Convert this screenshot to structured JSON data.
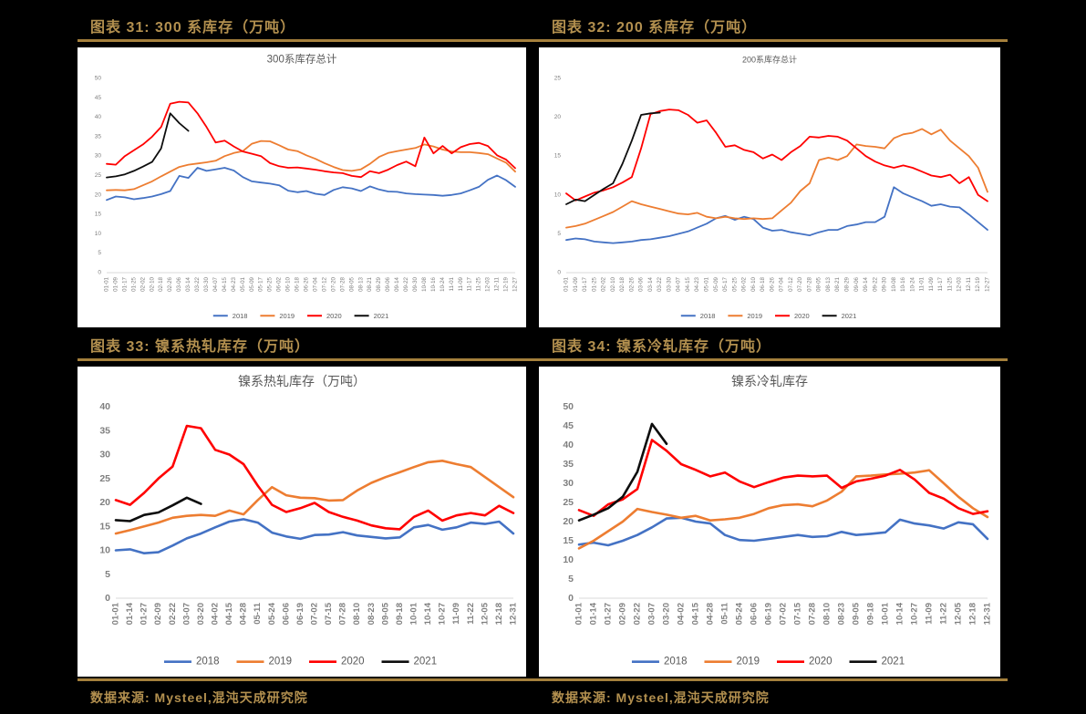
{
  "page": {
    "background": "#000000",
    "gold_text": "#B3904F",
    "gold_rule": "#A5803C",
    "card_background": "#FFFFFF",
    "axis_text_color": "#7F7F7F",
    "title_text_color": "#595959",
    "baseline_color": "#D9D9D9"
  },
  "figures": [
    {
      "caption": "图表 31: 300 系库存（万吨）"
    },
    {
      "caption": "图表 32: 200 系库存（万吨）"
    },
    {
      "caption": "图表 33: 镍系热轧库存（万吨）"
    },
    {
      "caption": "图表 34: 镍系冷轧库存（万吨）"
    }
  ],
  "sources": {
    "left": "数据来源: Mysteel,混沌天成研究院",
    "right": "数据来源: Mysteel,混沌天成研究院"
  },
  "chart_data": [
    {
      "type": "line",
      "title": "300系库存总计",
      "xlabel": "",
      "ylabel": "",
      "ylim": [
        0,
        50
      ],
      "ystep": 5,
      "grid": false,
      "legend_position": "bottom",
      "categories": [
        "01-01",
        "01-09",
        "01-17",
        "01-25",
        "02-02",
        "02-10",
        "02-18",
        "02-26",
        "03-06",
        "03-14",
        "03-22",
        "03-30",
        "04-07",
        "04-15",
        "04-23",
        "05-01",
        "05-09",
        "05-17",
        "05-25",
        "06-02",
        "06-10",
        "06-18",
        "06-26",
        "07-04",
        "07-12",
        "07-20",
        "07-28",
        "08-05",
        "08-13",
        "08-21",
        "08-29",
        "09-06",
        "09-14",
        "09-22",
        "09-30",
        "10-08",
        "10-16",
        "10-24",
        "11-01",
        "11-09",
        "11-17",
        "11-25",
        "12-03",
        "12-11",
        "12-19",
        "12-27"
      ],
      "series": [
        {
          "name": "2018",
          "color": "#4472C4",
          "values": [
            18.7,
            19.6,
            19.4,
            18.9,
            19.2,
            19.6,
            20.2,
            21.0,
            24.9,
            24.4,
            27.0,
            26.2,
            26.6,
            27.0,
            26.3,
            24.6,
            23.5,
            23.2,
            22.9,
            22.5,
            21.1,
            20.7,
            21.0,
            20.3,
            20.0,
            21.3,
            22.0,
            21.7,
            21.0,
            22.2,
            21.4,
            20.9,
            20.8,
            20.4,
            20.2,
            20.1,
            20.0,
            19.8,
            20.0,
            20.4,
            21.2,
            22.1,
            23.9,
            25.0,
            23.8,
            22.1
          ]
        },
        {
          "name": "2019",
          "color": "#ED7D31",
          "values": [
            21.2,
            21.3,
            21.2,
            21.5,
            22.5,
            23.5,
            24.8,
            26.0,
            27.2,
            27.8,
            28.1,
            28.4,
            28.8,
            30.0,
            30.8,
            31.3,
            33.2,
            33.9,
            33.8,
            32.8,
            31.7,
            31.3,
            30.2,
            29.3,
            28.2,
            27.2,
            26.4,
            26.2,
            26.6,
            28.0,
            29.8,
            30.8,
            31.3,
            31.7,
            32.1,
            33.0,
            32.5,
            31.7,
            31.2,
            31.0,
            31.0,
            30.8,
            30.5,
            29.4,
            28.3,
            26.0
          ]
        },
        {
          "name": "2020",
          "color": "#FF0000",
          "values": [
            28.0,
            27.8,
            30.0,
            31.5,
            33.0,
            35.0,
            37.5,
            43.5,
            44.0,
            43.8,
            41.0,
            37.5,
            33.5,
            34.0,
            32.5,
            31.2,
            30.6,
            30.0,
            28.2,
            27.4,
            27.0,
            27.1,
            26.8,
            26.5,
            26.1,
            25.8,
            25.6,
            24.9,
            24.6,
            26.1,
            25.6,
            26.5,
            27.7,
            28.6,
            27.4,
            34.8,
            30.7,
            32.6,
            30.7,
            32.3,
            33.1,
            33.4,
            32.6,
            30.2,
            29.1,
            26.9
          ]
        },
        {
          "name": "2021",
          "color": "#0D0D0D",
          "values": [
            24.5,
            24.8,
            25.3,
            26.2,
            27.3,
            28.5,
            32.0,
            41.0,
            38.5,
            36.5
          ]
        }
      ]
    },
    {
      "type": "line",
      "title": "200系库存总计",
      "xlabel": "",
      "ylabel": "",
      "ylim": [
        0,
        25
      ],
      "ystep": 5,
      "grid": false,
      "legend_position": "bottom",
      "categories": [
        "01-01",
        "01-09",
        "01-17",
        "01-25",
        "02-02",
        "02-10",
        "02-18",
        "02-26",
        "03-06",
        "03-14",
        "03-22",
        "03-30",
        "04-07",
        "04-15",
        "04-23",
        "05-01",
        "05-09",
        "05-17",
        "05-25",
        "06-02",
        "06-10",
        "06-18",
        "06-26",
        "07-04",
        "07-12",
        "07-20",
        "07-28",
        "08-05",
        "08-13",
        "08-21",
        "08-29",
        "09-06",
        "09-14",
        "09-22",
        "09-30",
        "10-08",
        "10-16",
        "10-24",
        "11-01",
        "11-09",
        "11-17",
        "11-25",
        "12-03",
        "12-11",
        "12-19",
        "12-27"
      ],
      "series": [
        {
          "name": "2018",
          "color": "#4472C4",
          "values": [
            4.2,
            4.4,
            4.3,
            4.0,
            3.9,
            3.8,
            3.9,
            4.0,
            4.2,
            4.3,
            4.5,
            4.7,
            5.0,
            5.3,
            5.8,
            6.3,
            7.0,
            7.3,
            6.8,
            7.2,
            6.9,
            5.8,
            5.4,
            5.5,
            5.2,
            5.0,
            4.8,
            5.2,
            5.5,
            5.5,
            6.0,
            6.2,
            6.5,
            6.5,
            7.2,
            11.0,
            10.2,
            9.7,
            9.2,
            8.6,
            8.8,
            8.5,
            8.4,
            7.5,
            6.5,
            5.5
          ]
        },
        {
          "name": "2019",
          "color": "#ED7D31",
          "values": [
            5.8,
            6.0,
            6.3,
            6.8,
            7.3,
            7.8,
            8.5,
            9.2,
            8.8,
            8.5,
            8.2,
            7.9,
            7.6,
            7.5,
            7.7,
            7.2,
            7.0,
            7.2,
            7.0,
            6.9,
            7.0,
            6.9,
            7.0,
            8.0,
            9.0,
            10.5,
            11.5,
            14.5,
            14.8,
            14.5,
            15.0,
            16.5,
            16.3,
            16.2,
            16.0,
            17.3,
            17.8,
            18.0,
            18.5,
            17.8,
            18.4,
            17.0,
            16.0,
            15.0,
            13.5,
            10.4
          ]
        },
        {
          "name": "2020",
          "color": "#FF0000",
          "values": [
            10.2,
            9.3,
            9.8,
            10.3,
            10.6,
            11.0,
            11.6,
            12.3,
            16.0,
            20.4,
            20.8,
            21.0,
            20.9,
            20.3,
            19.3,
            19.6,
            18.0,
            16.2,
            16.4,
            15.8,
            15.5,
            14.7,
            15.2,
            14.5,
            15.5,
            16.3,
            17.5,
            17.4,
            17.6,
            17.5,
            17.0,
            16.0,
            15.0,
            14.3,
            13.8,
            13.5,
            13.8,
            13.5,
            13.0,
            12.5,
            12.3,
            12.6,
            11.5,
            12.3,
            10.0,
            9.2
          ]
        },
        {
          "name": "2021",
          "color": "#0D0D0D",
          "values": [
            8.8,
            9.4,
            9.2,
            10.0,
            10.8,
            11.5,
            14.0,
            17.0,
            20.3,
            20.5,
            20.6
          ]
        }
      ]
    },
    {
      "type": "line",
      "title": "镍系热轧库存（万吨）",
      "xlabel": "",
      "ylabel": "",
      "ylim": [
        0,
        40
      ],
      "ystep": 5,
      "grid": false,
      "legend_position": "bottom",
      "categories": [
        "01-01",
        "01-14",
        "01-27",
        "02-09",
        "02-22",
        "03-07",
        "03-20",
        "04-02",
        "04-15",
        "04-28",
        "05-11",
        "05-24",
        "06-06",
        "06-19",
        "07-02",
        "07-15",
        "07-28",
        "08-10",
        "08-23",
        "09-05",
        "09-18",
        "10-01",
        "10-14",
        "10-27",
        "11-09",
        "11-22",
        "12-05",
        "12-18",
        "12-31"
      ],
      "series": [
        {
          "name": "2018",
          "color": "#4472C4",
          "values": [
            10.0,
            10.2,
            9.4,
            9.6,
            11.0,
            12.5,
            13.5,
            14.8,
            16.0,
            16.5,
            15.8,
            13.7,
            12.9,
            12.4,
            13.2,
            13.3,
            13.8,
            13.1,
            12.8,
            12.5,
            12.7,
            14.8,
            15.3,
            14.3,
            14.8,
            15.8,
            15.5,
            16.0,
            13.5
          ]
        },
        {
          "name": "2019",
          "color": "#ED7D31",
          "values": [
            13.5,
            14.2,
            15.0,
            15.8,
            16.8,
            17.2,
            17.4,
            17.2,
            18.3,
            17.5,
            20.5,
            23.2,
            21.5,
            21.0,
            20.9,
            20.4,
            20.5,
            22.5,
            24.1,
            25.3,
            26.3,
            27.4,
            28.4,
            28.7,
            28.0,
            27.4,
            25.3,
            23.2,
            21.1
          ]
        },
        {
          "name": "2020",
          "color": "#FF0000",
          "values": [
            20.5,
            19.5,
            22.0,
            25.0,
            27.5,
            36.0,
            35.5,
            31.0,
            30.0,
            28.0,
            23.5,
            19.5,
            18.0,
            18.8,
            19.9,
            18.0,
            17.0,
            16.2,
            15.2,
            14.6,
            14.4,
            17.0,
            18.3,
            16.2,
            17.3,
            17.8,
            17.3,
            19.3,
            17.8
          ]
        },
        {
          "name": "2021",
          "color": "#0D0D0D",
          "values": [
            16.3,
            16.1,
            17.4,
            17.9,
            19.4,
            21.0,
            19.7
          ]
        }
      ]
    },
    {
      "type": "line",
      "title": "镍系冷轧库存",
      "xlabel": "",
      "ylabel": "",
      "ylim": [
        0,
        50
      ],
      "ystep": 5,
      "grid": false,
      "legend_position": "bottom",
      "categories": [
        "01-01",
        "01-14",
        "01-27",
        "02-09",
        "02-22",
        "03-07",
        "03-20",
        "04-02",
        "04-15",
        "04-28",
        "05-11",
        "05-24",
        "06-06",
        "06-19",
        "07-02",
        "07-15",
        "07-28",
        "08-10",
        "08-23",
        "09-05",
        "09-18",
        "10-01",
        "10-14",
        "10-27",
        "11-09",
        "11-22",
        "12-05",
        "12-18",
        "12-31"
      ],
      "series": [
        {
          "name": "2018",
          "color": "#4472C4",
          "values": [
            14.0,
            14.5,
            13.8,
            15.0,
            16.5,
            18.5,
            20.8,
            21.0,
            20.0,
            19.5,
            16.5,
            15.2,
            15.0,
            15.5,
            16.0,
            16.5,
            16.0,
            16.2,
            17.3,
            16.5,
            16.8,
            17.2,
            20.5,
            19.5,
            19.0,
            18.2,
            19.8,
            19.3,
            15.5
          ]
        },
        {
          "name": "2019",
          "color": "#ED7D31",
          "values": [
            13.0,
            15.0,
            17.5,
            20.0,
            23.3,
            22.5,
            21.8,
            21.0,
            21.5,
            20.3,
            20.6,
            21.0,
            22.0,
            23.5,
            24.3,
            24.5,
            24.0,
            25.5,
            27.8,
            31.8,
            32.0,
            32.3,
            32.5,
            32.8,
            33.4,
            30.0,
            26.5,
            23.5,
            21.2
          ]
        },
        {
          "name": "2020",
          "color": "#FF0000",
          "values": [
            23.0,
            21.5,
            24.5,
            25.8,
            28.5,
            41.3,
            38.5,
            35.0,
            33.5,
            31.8,
            32.8,
            30.5,
            29.0,
            30.3,
            31.5,
            32.0,
            31.8,
            32.0,
            28.8,
            30.5,
            31.2,
            32.0,
            33.5,
            31.0,
            27.5,
            26.0,
            23.5,
            22.0,
            22.7
          ]
        },
        {
          "name": "2021",
          "color": "#0D0D0D",
          "values": [
            20.3,
            21.8,
            23.5,
            26.5,
            33.0,
            45.5,
            40.3
          ]
        }
      ]
    }
  ]
}
